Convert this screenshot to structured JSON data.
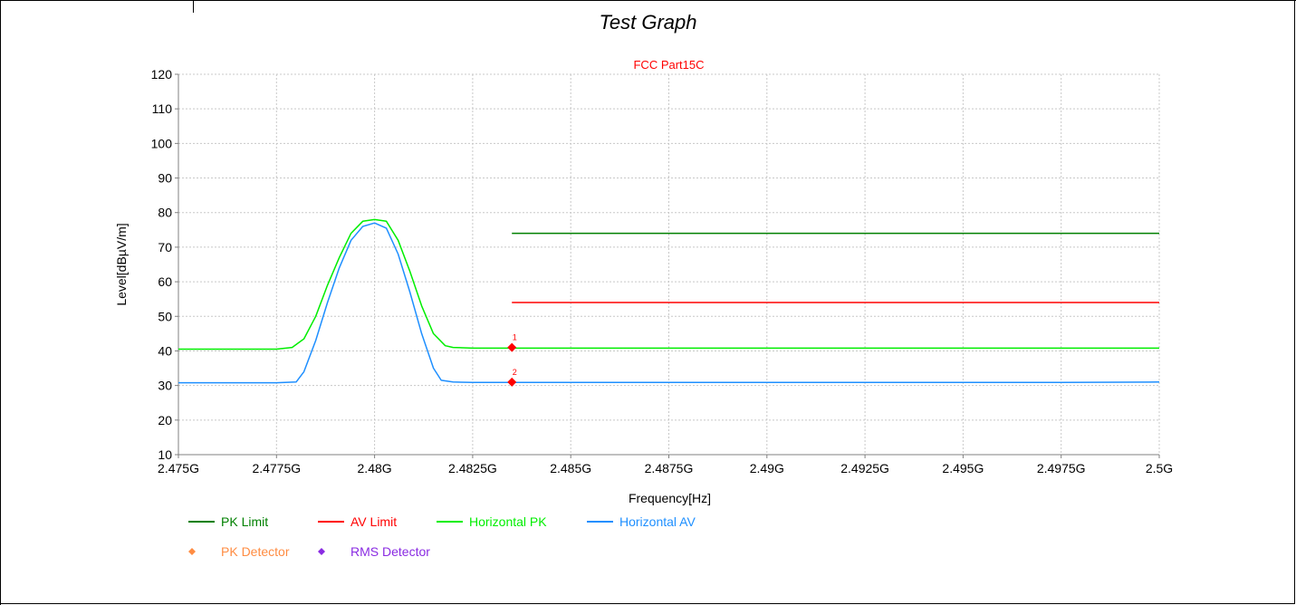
{
  "page": {
    "title": "Test Graph"
  },
  "chart_data": {
    "type": "line",
    "title": "FCC Part15C",
    "title_color": "#ff0000",
    "xlabel": "Frequency[Hz]",
    "ylabel": "Level[dBµV/m]",
    "xlim": [
      2.475,
      2.5
    ],
    "ylim": [
      10,
      120
    ],
    "x_unit": "GHz",
    "x_ticks": [
      2.475,
      2.4775,
      2.48,
      2.4825,
      2.485,
      2.4875,
      2.49,
      2.4925,
      2.495,
      2.4975,
      2.5
    ],
    "x_tick_labels": [
      "2.475G",
      "2.4775G",
      "2.48G",
      "2.4825G",
      "2.485G",
      "2.4875G",
      "2.49G",
      "2.4925G",
      "2.495G",
      "2.4975G",
      "2.5G"
    ],
    "y_ticks": [
      10,
      20,
      30,
      40,
      50,
      60,
      70,
      80,
      90,
      100,
      110,
      120
    ],
    "grid": true,
    "series": [
      {
        "name": "PK Limit",
        "color": "#008000",
        "x": [
          2.4835,
          2.5
        ],
        "y": [
          74,
          74
        ]
      },
      {
        "name": "AV Limit",
        "color": "#ff0000",
        "x": [
          2.4835,
          2.5
        ],
        "y": [
          54,
          54
        ]
      },
      {
        "name": "Horizontal PK",
        "color": "#00ee00",
        "x": [
          2.475,
          2.4775,
          2.4779,
          2.4782,
          2.4785,
          2.4788,
          2.4791,
          2.4794,
          2.4797,
          2.48,
          2.4803,
          2.4806,
          2.4809,
          2.4812,
          2.4815,
          2.4818,
          2.482,
          2.4825,
          2.485,
          2.4875,
          2.49,
          2.4925,
          2.495,
          2.4975,
          2.5
        ],
        "y": [
          40.5,
          40.5,
          41,
          43.5,
          50,
          59,
          67,
          74,
          77.5,
          78,
          77.5,
          72,
          63,
          53,
          45,
          41.5,
          41,
          40.8,
          40.8,
          40.8,
          40.8,
          40.8,
          40.8,
          40.8,
          40.8
        ]
      },
      {
        "name": "Horizontal AV",
        "color": "#1e8fff",
        "x": [
          2.475,
          2.4775,
          2.478,
          2.4782,
          2.4785,
          2.4788,
          2.4791,
          2.4794,
          2.4797,
          2.48,
          2.4803,
          2.4806,
          2.4809,
          2.4812,
          2.4815,
          2.4817,
          2.482,
          2.4825,
          2.485,
          2.4875,
          2.49,
          2.4925,
          2.495,
          2.4975,
          2.5
        ],
        "y": [
          30.8,
          30.8,
          31,
          34,
          43,
          54,
          64,
          72,
          76,
          77,
          75.5,
          68,
          57,
          45,
          35,
          31.5,
          31,
          30.9,
          30.9,
          30.9,
          30.9,
          30.9,
          30.9,
          30.9,
          31
        ]
      }
    ],
    "markers": [
      {
        "label": "1",
        "x": 2.4835,
        "y": 41,
        "color": "#ff0000"
      },
      {
        "label": "2",
        "x": 2.4835,
        "y": 31,
        "color": "#ff0000"
      }
    ],
    "legend": [
      {
        "name": "PK Limit",
        "symbol": "line",
        "color": "#008000"
      },
      {
        "name": "AV Limit",
        "symbol": "line",
        "color": "#ff0000"
      },
      {
        "name": "Horizontal PK",
        "symbol": "line",
        "color": "#00ee00"
      },
      {
        "name": "Horizontal AV",
        "symbol": "line",
        "color": "#1e8fff"
      },
      {
        "name": "PK Detector",
        "symbol": "diamond",
        "color": "#ff8c42"
      },
      {
        "name": "RMS Detector",
        "symbol": "diamond",
        "color": "#8a2be2"
      }
    ],
    "legend_position": "bottom-left"
  }
}
